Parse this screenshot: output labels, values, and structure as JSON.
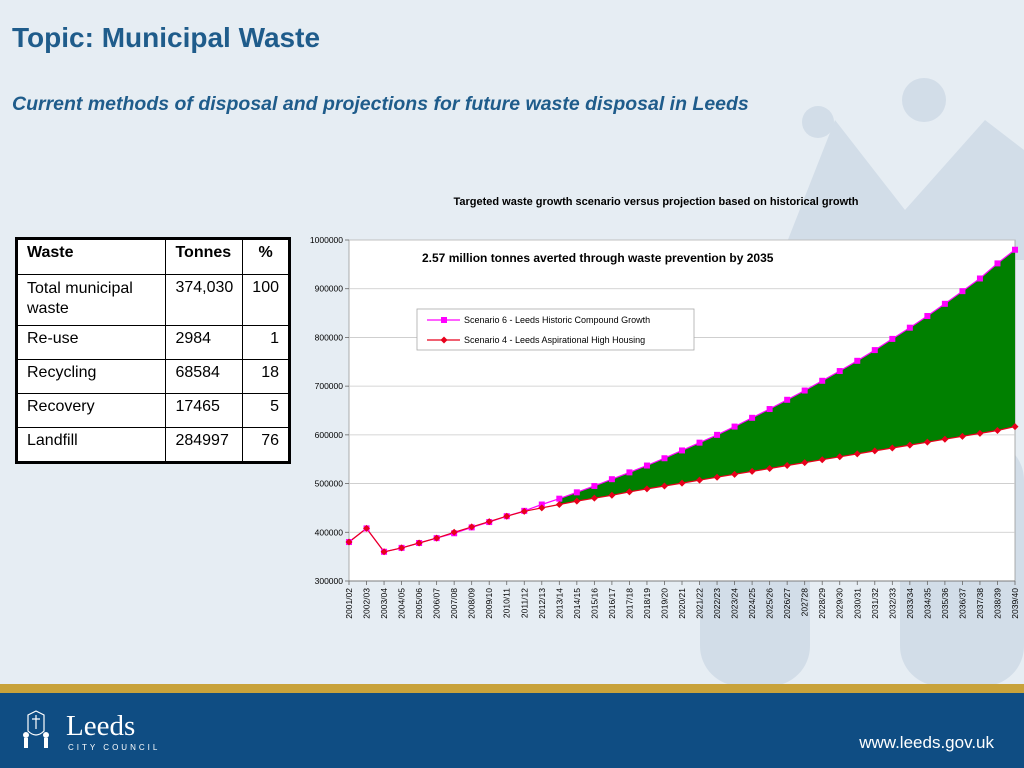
{
  "slide": {
    "topic": "Topic: Municipal Waste",
    "subtitle": "Current methods of disposal and projections for future waste disposal in Leeds"
  },
  "table": {
    "headers": [
      "Waste",
      "Tonnes",
      "%"
    ],
    "rows": [
      {
        "waste": "Total municipal waste",
        "tonnes": "374,030",
        "percent": "100"
      },
      {
        "waste": "Re-use",
        "tonnes": "2984",
        "percent": "1"
      },
      {
        "waste": "Recycling",
        "tonnes": "68584",
        "percent": "18"
      },
      {
        "waste": "Recovery",
        "tonnes": "17465",
        "percent": "5"
      },
      {
        "waste": "Landfill",
        "tonnes": "284997",
        "percent": "76"
      }
    ]
  },
  "chart_data": {
    "type": "line",
    "title": "Targeted waste growth scenario versus projection based on historical growth",
    "annotation": "2.57 million tonnes averted through waste prevention by 2035",
    "ylim": [
      300000,
      1000000
    ],
    "yticks": [
      300000,
      400000,
      500000,
      600000,
      700000,
      800000,
      900000,
      1000000
    ],
    "ytick_labels": [
      "300000",
      "400000",
      "500000",
      "600000",
      "700000",
      "800000",
      "900000",
      "1000000"
    ],
    "grid": true,
    "legend": "top-center",
    "categories": [
      "2001/02",
      "2002/03",
      "2003/04",
      "2004/05",
      "2005/06",
      "2006/07",
      "2007/08",
      "2008/09",
      "2009/10",
      "2010/11",
      "2011/12",
      "2012/13",
      "2013/14",
      "2014/15",
      "2015/16",
      "2016/17",
      "2017/18",
      "2018/19",
      "2019/20",
      "2020/21",
      "2021/22",
      "2022/23",
      "2023/24",
      "2024/25",
      "2025/26",
      "2026/27",
      "202728",
      "2028/29",
      "2029/30",
      "2030/31",
      "2031/32",
      "2032/33",
      "2033/34",
      "2034/35",
      "2035/36",
      "2036/37",
      "2037/38",
      "2038/39",
      "2039/40"
    ],
    "series": [
      {
        "name": "Scenario 6 - Leeds Historic Compound Growth",
        "color": "#ff00ff",
        "marker": "square",
        "values": [
          380000,
          408000,
          360000,
          368000,
          378000,
          388000,
          398000,
          410000,
          421000,
          433000,
          444000,
          457000,
          469000,
          482000,
          495000,
          509000,
          523000,
          537000,
          552000,
          568000,
          584000,
          600000,
          617000,
          635000,
          653000,
          672000,
          691000,
          711000,
          731000,
          752000,
          774000,
          797000,
          820000,
          844000,
          869000,
          895000,
          921000,
          952000,
          980000
        ]
      },
      {
        "name": "Scenario 4 - Leeds Aspirational High Housing",
        "color": "#e8001c",
        "marker": "diamond",
        "values": [
          380000,
          408000,
          360000,
          368000,
          378000,
          388000,
          400000,
          411000,
          422000,
          433000,
          443000,
          450000,
          457000,
          464000,
          470000,
          476000,
          483000,
          489000,
          495000,
          501000,
          507000,
          513000,
          519000,
          525000,
          531000,
          537000,
          543000,
          549000,
          555000,
          561000,
          567000,
          573000,
          579000,
          585000,
          591000,
          597000,
          603000,
          609000,
          617000
        ]
      }
    ],
    "fill_between": {
      "from_index": 12,
      "color": "#008000"
    }
  },
  "footer": {
    "logo_name": "Leeds",
    "logo_sub": "CITY COUNCIL",
    "url": "www.leeds.gov.uk"
  }
}
